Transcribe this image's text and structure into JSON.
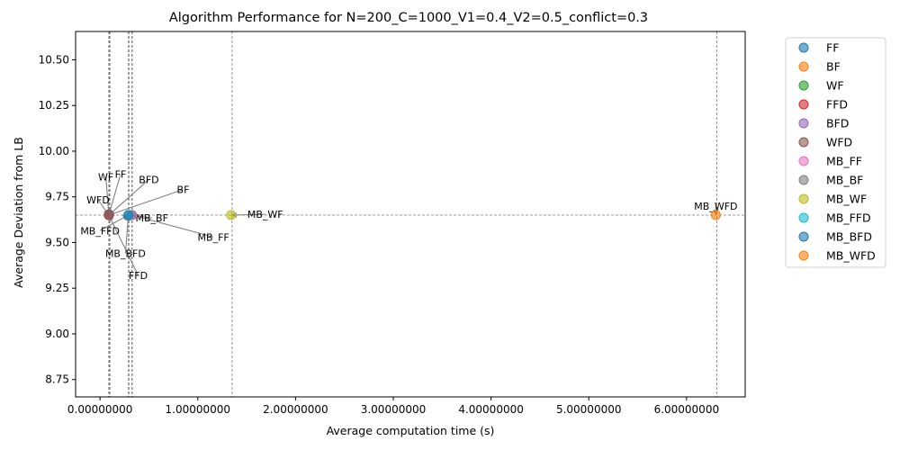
{
  "chart_data": {
    "type": "scatter",
    "title": "Algorithm Performance for N=200_C=1000_V1=0.4_V2=0.5_conflict=0.3",
    "xlabel": "Average computation time (s)",
    "ylabel": "Average Deviation from LB",
    "xlim": [
      -0.25,
      6.6
    ],
    "ylim": [
      8.655,
      10.655
    ],
    "x_ticks": [
      0,
      1,
      2,
      3,
      4,
      5,
      6
    ],
    "x_tick_labels": [
      "0.00000000",
      "1.00000000",
      "2.00000000",
      "3.00000000",
      "4.00000000",
      "5.00000000",
      "6.00000000"
    ],
    "y_ticks": [
      8.75,
      9.0,
      9.25,
      9.5,
      9.75,
      10.0,
      10.25,
      10.5
    ],
    "y_tick_labels": [
      "8.75",
      "9.00",
      "9.25",
      "9.50",
      "9.75",
      "10.00",
      "10.25",
      "10.50"
    ],
    "grid": false,
    "reference_lines": "dashed vertical line at each algorithm's time; dashed horizontal line at 9.65",
    "legend_position": "outside right",
    "series": [
      {
        "name": "FF",
        "x": 0.09,
        "y": 9.65,
        "color": "#1f77b4",
        "label": "FF",
        "label_at": [
          0.21,
          9.875
        ]
      },
      {
        "name": "BF",
        "x": 0.09,
        "y": 9.65,
        "color": "#ff7f0e",
        "label": "BF",
        "label_at": [
          0.85,
          9.79
        ]
      },
      {
        "name": "WF",
        "x": 0.09,
        "y": 9.65,
        "color": "#2ca02c",
        "label": "WF",
        "label_at": [
          0.06,
          9.86
        ]
      },
      {
        "name": "FFD",
        "x": 0.09,
        "y": 9.65,
        "color": "#d62728",
        "label": "FFD",
        "label_at": [
          0.39,
          9.32
        ]
      },
      {
        "name": "BFD",
        "x": 0.09,
        "y": 9.65,
        "color": "#9467bd",
        "label": "BFD",
        "label_at": [
          0.5,
          9.845
        ]
      },
      {
        "name": "WFD",
        "x": 0.09,
        "y": 9.65,
        "color": "#8c564b",
        "label": "WFD",
        "label_at": [
          -0.02,
          9.735
        ]
      },
      {
        "name": "MB_FF",
        "x": 0.33,
        "y": 9.65,
        "color": "#e377c2",
        "label": "MB_FF",
        "label_at": [
          1.16,
          9.53
        ]
      },
      {
        "name": "MB_BF",
        "x": 0.32,
        "y": 9.65,
        "color": "#7f7f7f",
        "label": "MB_BF",
        "label_at": [
          0.53,
          9.635
        ]
      },
      {
        "name": "MB_WF",
        "x": 1.34,
        "y": 9.65,
        "color": "#bcbd22",
        "label": "MB_WF",
        "label_at": [
          1.69,
          9.655
        ]
      },
      {
        "name": "MB_FFD",
        "x": 0.29,
        "y": 9.65,
        "color": "#17becf",
        "label": "MB_FFD",
        "label_at": [
          0.0,
          9.565
        ]
      },
      {
        "name": "MB_BFD",
        "x": 0.29,
        "y": 9.65,
        "color": "#1f77b4",
        "label": "MB_BFD",
        "label_at": [
          0.26,
          9.44
        ]
      },
      {
        "name": "MB_WFD",
        "x": 6.3,
        "y": 9.65,
        "color": "#ff7f0e",
        "label": "MB_WFD",
        "label_at": [
          6.3,
          9.7
        ]
      }
    ]
  }
}
